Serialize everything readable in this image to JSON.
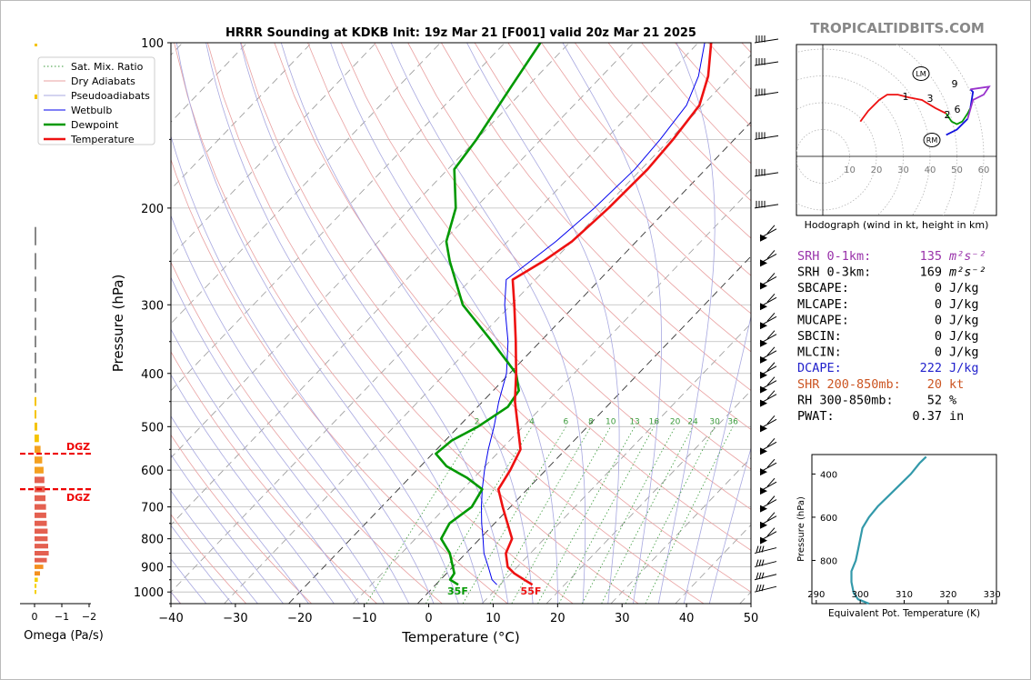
{
  "header": {
    "title": "HRRR Sounding at KDKB Init: 19z Mar 21 [F001] valid 20z Mar 21 2025",
    "brand": "TROPICALTIDBITS.COM"
  },
  "chart_data": [
    {
      "type": "line",
      "name": "skew-t",
      "xlabel": "Temperature (°C)",
      "ylabel": "Pressure (hPa)",
      "xlim": [
        -40,
        50
      ],
      "ylim": [
        1050,
        100
      ],
      "y_scale": "log",
      "x_ticks": [
        "−40",
        "−30",
        "−20",
        "−10",
        "0",
        "10",
        "20",
        "30",
        "40",
        "50"
      ],
      "y_ticks": [
        "100",
        "200",
        "300",
        "400",
        "500",
        "600",
        "700",
        "800",
        "900",
        "1000"
      ],
      "legend": [
        "Sat. Mix. Ratio",
        "Dry Adiabats",
        "Pseudoadiabats",
        "Wetbulb",
        "Dewpoint",
        "Temperature"
      ],
      "legend_position": "upper-left",
      "mixing_ratio_labels": [
        "2",
        "4",
        "6",
        "8",
        "10",
        "13",
        "16",
        "20",
        "24",
        "30",
        "36"
      ],
      "surface_labels": {
        "dewpoint": "35F",
        "temperature": "55F"
      },
      "series": [
        {
          "name": "Temperature",
          "color": "#ee1111",
          "points": [
            [
              970,
              15
            ],
            [
              950,
              13
            ],
            [
              925,
              10.5
            ],
            [
              900,
              8.5
            ],
            [
              850,
              6.2
            ],
            [
              800,
              5.0
            ],
            [
              750,
              2.0
            ],
            [
              700,
              -1.2
            ],
            [
              650,
              -4.5
            ],
            [
              600,
              -5.5
            ],
            [
              550,
              -7.0
            ],
            [
              500,
              -10.8
            ],
            [
              450,
              -15.0
            ],
            [
              400,
              -19.0
            ],
            [
              350,
              -23.8
            ],
            [
              300,
              -29.5
            ],
            [
              270,
              -33.5
            ],
            [
              250,
              -31.5
            ],
            [
              230,
              -30.0
            ],
            [
              200,
              -29.3
            ],
            [
              170,
              -29.0
            ],
            [
              150,
              -29.5
            ],
            [
              130,
              -30.5
            ],
            [
              115,
              -33.5
            ],
            [
              100,
              -38.0
            ]
          ]
        },
        {
          "name": "Dewpoint",
          "color": "#009900",
          "points": [
            [
              970,
              3.5
            ],
            [
              950,
              1.5
            ],
            [
              925,
              1.2
            ],
            [
              900,
              0
            ],
            [
              850,
              -2.5
            ],
            [
              800,
              -6.0
            ],
            [
              750,
              -7.0
            ],
            [
              700,
              -6.0
            ],
            [
              650,
              -7.0
            ],
            [
              620,
              -11.0
            ],
            [
              590,
              -16.0
            ],
            [
              560,
              -19.5
            ],
            [
              530,
              -19.0
            ],
            [
              500,
              -17.0
            ],
            [
              460,
              -15.3
            ],
            [
              430,
              -16.0
            ],
            [
              400,
              -19.0
            ],
            [
              350,
              -27.5
            ],
            [
              300,
              -37.5
            ],
            [
              250,
              -46.0
            ],
            [
              230,
              -49.5
            ],
            [
              200,
              -53.0
            ],
            [
              170,
              -59.0
            ],
            [
              150,
              -60.0
            ],
            [
              120,
              -62.5
            ],
            [
              100,
              -64.5
            ]
          ]
        },
        {
          "name": "Wetbulb",
          "color": "#0000ee",
          "points": [
            [
              970,
              9.5
            ],
            [
              950,
              8
            ],
            [
              900,
              5.5
            ],
            [
              850,
              2.8
            ],
            [
              800,
              0.5
            ],
            [
              750,
              -2.0
            ],
            [
              700,
              -4.5
            ],
            [
              650,
              -7.0
            ],
            [
              600,
              -9.5
            ],
            [
              550,
              -12.0
            ],
            [
              500,
              -14.5
            ],
            [
              450,
              -17.5
            ],
            [
              400,
              -20.5
            ],
            [
              350,
              -25.0
            ],
            [
              300,
              -31.0
            ],
            [
              270,
              -34.5
            ],
            [
              250,
              -33.5
            ],
            [
              230,
              -32.5
            ],
            [
              200,
              -31.5
            ],
            [
              170,
              -31.0
            ],
            [
              150,
              -31.5
            ],
            [
              130,
              -32.5
            ],
            [
              115,
              -35.0
            ],
            [
              100,
              -39.0
            ]
          ]
        }
      ]
    },
    {
      "type": "bar",
      "name": "omega",
      "xlabel": "Omega (Pa/s)",
      "x_ticks": [
        "0",
        "−1",
        "−2"
      ],
      "dgz_label": "DGZ",
      "dgz_bounds_hpa": [
        560,
        650
      ],
      "bars": [
        [
          1000,
          -0.05
        ],
        [
          975,
          -0.07
        ],
        [
          950,
          -0.12
        ],
        [
          925,
          -0.2
        ],
        [
          900,
          -0.32
        ],
        [
          875,
          -0.45
        ],
        [
          850,
          -0.52
        ],
        [
          825,
          -0.5
        ],
        [
          800,
          -0.48
        ],
        [
          775,
          -0.48
        ],
        [
          750,
          -0.45
        ],
        [
          725,
          -0.43
        ],
        [
          700,
          -0.42
        ],
        [
          675,
          -0.4
        ],
        [
          650,
          -0.38
        ],
        [
          625,
          -0.36
        ],
        [
          600,
          -0.33
        ],
        [
          575,
          -0.28
        ],
        [
          550,
          -0.22
        ],
        [
          525,
          -0.16
        ],
        [
          500,
          -0.1
        ],
        [
          475,
          -0.06
        ],
        [
          450,
          -0.04
        ],
        [
          425,
          -0.03
        ],
        [
          400,
          -0.02
        ],
        [
          375,
          -0.02
        ],
        [
          350,
          -0.03
        ],
        [
          325,
          -0.04
        ],
        [
          300,
          -0.05
        ],
        [
          275,
          -0.05
        ],
        [
          250,
          -0.06
        ],
        [
          225,
          -0.04
        ]
      ]
    },
    {
      "type": "line",
      "name": "hodograph",
      "xlabel": "Hodograph (wind in kt, height in km)",
      "ring_labels": [
        "10",
        "20",
        "30",
        "40",
        "50",
        "60"
      ],
      "storm_markers": [
        "LM",
        "RM"
      ],
      "height_labels": [
        "1",
        "2",
        "3",
        "6",
        "9"
      ],
      "trace": [
        [
          14,
          13
        ],
        [
          17,
          17
        ],
        [
          21,
          21
        ],
        [
          24,
          23
        ],
        [
          28,
          23
        ],
        [
          32,
          22
        ],
        [
          37,
          21
        ],
        [
          42,
          18
        ],
        [
          46,
          16
        ],
        [
          48,
          13
        ],
        [
          50,
          12
        ],
        [
          52,
          13
        ],
        [
          54,
          16
        ],
        [
          55,
          18
        ],
        [
          56,
          24
        ],
        [
          55,
          25
        ],
        [
          62,
          26
        ],
        [
          60,
          23
        ],
        [
          56,
          21
        ],
        [
          54,
          14
        ],
        [
          50,
          10
        ],
        [
          46,
          8
        ]
      ]
    },
    {
      "type": "line",
      "name": "theta-e",
      "xlabel": "Equivalent Pot. Temperature (K)",
      "ylabel": "Pressure (hPa)",
      "x_ticks": [
        "290",
        "300",
        "310",
        "320",
        "330"
      ],
      "y_ticks": [
        "400",
        "600",
        "800"
      ],
      "xlim": [
        289,
        331
      ],
      "ylim": [
        1000,
        310
      ],
      "points": [
        [
          1000,
          302
        ],
        [
          980,
          299.5
        ],
        [
          950,
          298.5
        ],
        [
          900,
          298
        ],
        [
          850,
          298
        ],
        [
          800,
          299
        ],
        [
          750,
          299.5
        ],
        [
          700,
          300
        ],
        [
          650,
          300.5
        ],
        [
          600,
          302
        ],
        [
          550,
          304
        ],
        [
          500,
          306.5
        ],
        [
          450,
          309
        ],
        [
          400,
          311.5
        ],
        [
          350,
          313.5
        ],
        [
          320,
          315
        ]
      ]
    }
  ],
  "indices": [
    {
      "label": "SRH 0-1km:",
      "value": "135",
      "unit": "m²s⁻²",
      "color": "#9933aa"
    },
    {
      "label": "SRH 0-3km:",
      "value": "169",
      "unit": "m²s⁻²",
      "color": "#000000"
    },
    {
      "label": "SBCAPE:",
      "value": "0",
      "unit": "J/kg",
      "color": "#000000"
    },
    {
      "label": "MLCAPE:",
      "value": "0",
      "unit": "J/kg",
      "color": "#000000"
    },
    {
      "label": "MUCAPE:",
      "value": "0",
      "unit": "J/kg",
      "color": "#000000"
    },
    {
      "label": "SBCIN:",
      "value": "0",
      "unit": "J/kg",
      "color": "#000000"
    },
    {
      "label": "MLCIN:",
      "value": "0",
      "unit": "J/kg",
      "color": "#000000"
    },
    {
      "label": "DCAPE:",
      "value": "222",
      "unit": "J/kg",
      "color": "#2222cc"
    },
    {
      "label": "SHR 200-850mb:",
      "value": "20",
      "unit": "kt",
      "color": "#cc5522"
    },
    {
      "label": "RH 300-850mb:",
      "value": "52",
      "unit": "%",
      "color": "#000000"
    },
    {
      "label": "PWAT:",
      "value": "0.37",
      "unit": "in",
      "color": "#000000"
    }
  ]
}
